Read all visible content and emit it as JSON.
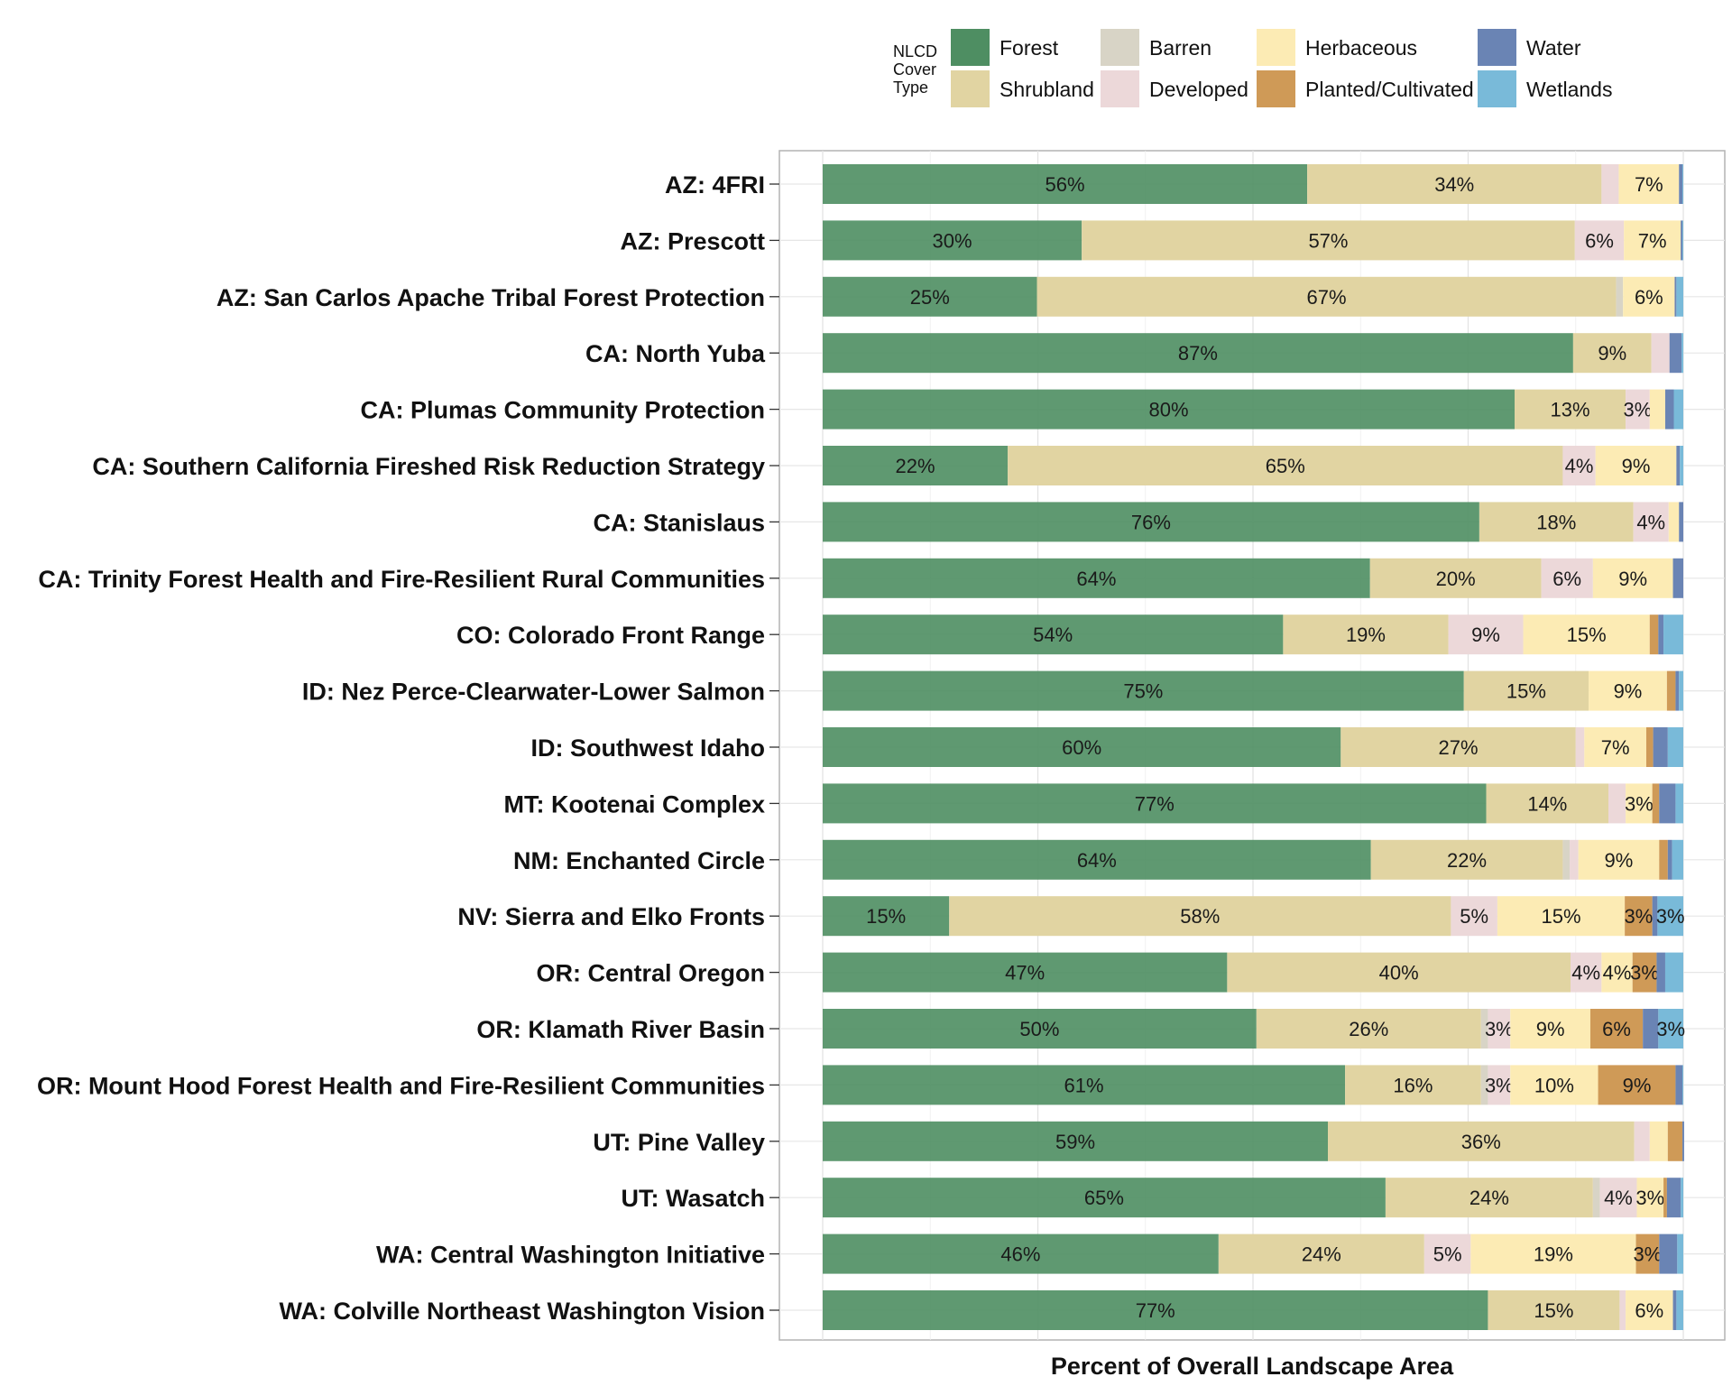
{
  "chart_data": {
    "type": "bar",
    "orientation": "horizontal",
    "stacked": true,
    "xlabel": "Percent of Overall Landscape Area",
    "xlim": [
      0,
      100
    ],
    "grid": true,
    "legend": {
      "title_lines": [
        "NLCD",
        "Cover",
        "Type"
      ],
      "placement": "top",
      "order": [
        "Forest",
        "Shrubland",
        "Barren",
        "Developed",
        "Herbaceous",
        "Planted/Cultivated",
        "Water",
        "Wetlands"
      ]
    },
    "colors": {
      "Forest": "#4e8e62",
      "Shrubland": "#e1d4a2",
      "Barren": "#d8d4c6",
      "Developed": "#ecd8d9",
      "Herbaceous": "#fcebb4",
      "Planted/Cultivated": "#cf9a57",
      "Water": "#6a84b4",
      "Wetlands": "#79bad9"
    },
    "categories": [
      "AZ: 4FRI",
      "AZ: Prescott",
      "AZ: San Carlos Apache Tribal Forest Protection",
      "CA: North Yuba",
      "CA: Plumas Community Protection",
      "CA: Southern California Fireshed Risk Reduction Strategy",
      "CA: Stanislaus",
      "CA: Trinity Forest Health and Fire-Resilient Rural Communities",
      "CO: Colorado Front Range",
      "ID: Nez Perce-Clearwater-Lower Salmon",
      "ID: Southwest Idaho",
      "MT: Kootenai Complex",
      "NM: Enchanted Circle",
      "NV: Sierra and Elko Fronts",
      "OR: Central Oregon",
      "OR: Klamath River Basin",
      "OR: Mount Hood Forest Health and Fire-Resilient Communities",
      "UT: Pine Valley",
      "UT: Wasatch",
      "WA: Central Washington Initiative",
      "WA: Colville Northeast Washington Vision"
    ],
    "series": [
      {
        "name": "Forest",
        "values": [
          56.3,
          30.1,
          24.9,
          87.2,
          80.4,
          21.5,
          76.3,
          63.6,
          53.5,
          74.5,
          60.2,
          77.1,
          63.7,
          14.7,
          47.0,
          50.4,
          60.7,
          58.7,
          65.4,
          46.0,
          77.3
        ]
      },
      {
        "name": "Shrubland",
        "values": [
          34.2,
          57.3,
          67.3,
          9.1,
          12.9,
          64.5,
          17.9,
          19.9,
          19.2,
          14.5,
          27.3,
          14.2,
          22.3,
          58.3,
          39.9,
          26.1,
          15.8,
          35.6,
          24.1,
          23.9,
          15.3
        ]
      },
      {
        "name": "Barren",
        "values": [
          0.0,
          0.0,
          0.8,
          0.0,
          0.0,
          0.0,
          0.0,
          0.0,
          0.0,
          0.0,
          0.0,
          0.0,
          0.8,
          0.0,
          0.0,
          0.8,
          0.8,
          0.0,
          0.8,
          0.0,
          0.0
        ]
      },
      {
        "name": "Developed",
        "values": [
          2.0,
          5.7,
          0.0,
          2.1,
          2.8,
          3.8,
          4.1,
          6.0,
          8.7,
          0.0,
          1.0,
          2.0,
          1.0,
          5.4,
          3.6,
          2.6,
          2.6,
          1.8,
          4.3,
          5.4,
          0.7
        ]
      },
      {
        "name": "Herbaceous",
        "values": [
          7.0,
          6.6,
          6.0,
          0.0,
          1.8,
          9.4,
          1.2,
          9.3,
          14.7,
          9.1,
          7.2,
          3.1,
          9.4,
          14.8,
          3.6,
          9.3,
          10.2,
          2.1,
          3.1,
          19.2,
          5.5
        ]
      },
      {
        "name": "Planted/Cultivated",
        "values": [
          0.0,
          0.0,
          0.0,
          0.0,
          0.0,
          0.0,
          0.0,
          0.0,
          1.0,
          1.0,
          0.8,
          0.8,
          1.0,
          3.2,
          2.8,
          6.1,
          9.0,
          1.7,
          0.4,
          2.7,
          0.0
        ]
      },
      {
        "name": "Water",
        "values": [
          0.4,
          0.2,
          0.2,
          1.4,
          1.0,
          0.4,
          0.5,
          1.2,
          0.6,
          0.4,
          1.7,
          1.9,
          0.5,
          0.6,
          1.0,
          1.8,
          0.8,
          0.2,
          1.6,
          2.1,
          0.4
        ]
      },
      {
        "name": "Wetlands",
        "values": [
          0.1,
          0.1,
          0.8,
          0.2,
          1.1,
          0.4,
          0.0,
          0.0,
          2.3,
          0.5,
          1.8,
          0.9,
          1.3,
          3.0,
          2.1,
          2.9,
          0.1,
          0.0,
          0.3,
          0.7,
          0.8
        ]
      }
    ]
  }
}
